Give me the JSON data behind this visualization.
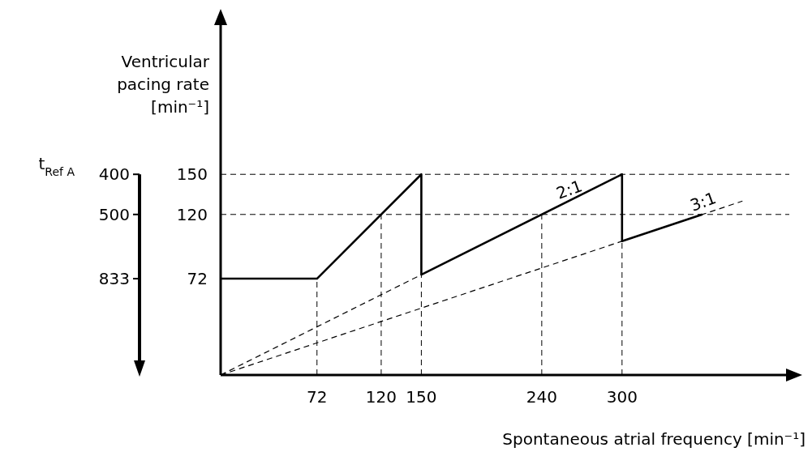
{
  "chart_data": {
    "type": "line",
    "xlabel": "Spontaneous atrial frequency [min⁻¹]",
    "ylabel": "Ventricular pacing rate [min⁻¹]",
    "xlim": [
      0,
      425
    ],
    "xticks": [
      72,
      120,
      150,
      240,
      300
    ],
    "ylim": [
      0,
      270
    ],
    "yticks": [
      72,
      120,
      150
    ],
    "series": [
      {
        "color": "#000000",
        "x": [
          0,
          72,
          150,
          150,
          300,
          300,
          360
        ],
        "values": [
          72,
          72,
          150,
          75,
          150,
          100,
          120
        ],
        "line_style": "solid"
      },
      {
        "color": "#000000",
        "x": [
          0,
          150
        ],
        "values": [
          0,
          75
        ],
        "line_style": "dashed"
      },
      {
        "color": "#000000",
        "x": [
          0,
          390
        ],
        "values": [
          0,
          130
        ],
        "line_style": "dashed"
      }
    ],
    "ref_lines": [
      {
        "axis": "y",
        "value": 150,
        "color": "#000000",
        "line_style": "dashed"
      },
      {
        "axis": "y",
        "value": 120,
        "color": "#000000",
        "line_style": "dashed"
      },
      {
        "axis": "x",
        "value": 72,
        "color": "#000000",
        "line_style": "dashed"
      },
      {
        "axis": "x",
        "value": 120,
        "color": "#000000",
        "line_style": "dashed"
      },
      {
        "axis": "x",
        "value": 150,
        "color": "#000000",
        "line_style": "dashed"
      },
      {
        "axis": "x",
        "value": 240,
        "color": "#000000",
        "line_style": "dashed"
      },
      {
        "axis": "x",
        "value": 300,
        "color": "#000000",
        "line_style": "dashed"
      }
    ],
    "annotations": [
      {
        "text": "2:1",
        "x": 262,
        "y": 131
      },
      {
        "text": "3:1",
        "x": 362,
        "y": 122
      },
      "t$_{Ref A}$",
      "400",
      "500",
      "833"
    ],
    "marker": "none"
  }
}
